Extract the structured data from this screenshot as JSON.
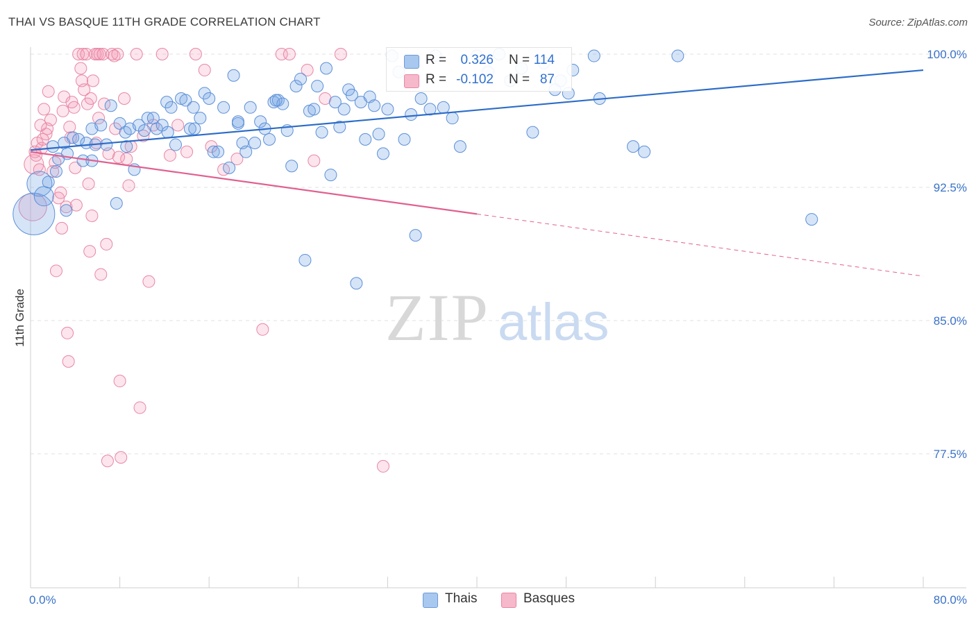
{
  "title": "THAI VS BASQUE 11TH GRADE CORRELATION CHART",
  "source": "Source: ZipAtlas.com",
  "watermark": {
    "zip": "ZIP",
    "atlas": "atlas"
  },
  "legend": {
    "rows": [
      {
        "r_label": "R =",
        "r_value": "0.326",
        "n_label": "N =",
        "n_value": "114",
        "color": "#a9c8ef",
        "border": "#6b9ad8"
      },
      {
        "r_label": "R =",
        "r_value": "-0.102",
        "n_label": "N =",
        "n_value": "87",
        "color": "#f6b8cb",
        "border": "#e886a5"
      }
    ]
  },
  "bottom_legend": [
    {
      "label": "Thais",
      "color": "#a9c8ef",
      "border": "#6b9ad8"
    },
    {
      "label": "Basques",
      "color": "#f6b8cb",
      "border": "#e886a5"
    }
  ],
  "colors": {
    "thai_fill": "rgba(120,165,228,0.30)",
    "thai_stroke": "#5a8fd8",
    "thai_line": "#2c6cc8",
    "basque_fill": "rgba(242,150,180,0.25)",
    "basque_stroke": "#e886a5",
    "basque_line": "#e06090",
    "tick_label": "#3a72c8",
    "grid": "#e2e2e2"
  },
  "chart_data": {
    "type": "scatter",
    "title": "THAI VS BASQUE 11TH GRADE CORRELATION CHART",
    "xlabel": "",
    "ylabel": "11th Grade",
    "xlim": [
      0,
      80
    ],
    "ylim": [
      71,
      101.5
    ],
    "x_tick_labels": [
      "0.0%",
      "80.0%"
    ],
    "y_ticks": [
      100,
      92.5,
      85,
      77.5
    ],
    "y_tick_labels": [
      "100.0%",
      "92.5%",
      "85.0%",
      "77.5%"
    ],
    "grid": true,
    "series": [
      {
        "name": "Thais",
        "trend": {
          "x0": 0,
          "y0": 94.6,
          "x1": 80,
          "y1": 99.1,
          "solid_until": 80
        },
        "points": [
          [
            0.3,
            91.0
          ],
          [
            0.8,
            92.7
          ],
          [
            1.2,
            92.0
          ],
          [
            1.6,
            92.8
          ],
          [
            2.0,
            94.8
          ],
          [
            2.3,
            93.4
          ],
          [
            2.5,
            94.1
          ],
          [
            3.0,
            95.0
          ],
          [
            3.3,
            94.4
          ],
          [
            3.8,
            95.3
          ],
          [
            4.3,
            95.2
          ],
          [
            4.7,
            94.0
          ],
          [
            5.0,
            95.0
          ],
          [
            5.5,
            95.8
          ],
          [
            5.8,
            94.9
          ],
          [
            6.3,
            96.0
          ],
          [
            6.8,
            94.9
          ],
          [
            7.2,
            97.1
          ],
          [
            7.7,
            91.6
          ],
          [
            8.0,
            96.1
          ],
          [
            8.5,
            95.6
          ],
          [
            8.9,
            95.8
          ],
          [
            9.3,
            93.5
          ],
          [
            9.7,
            96.0
          ],
          [
            10.2,
            95.7
          ],
          [
            10.5,
            96.4
          ],
          [
            11.0,
            96.4
          ],
          [
            11.3,
            95.8
          ],
          [
            11.8,
            96.0
          ],
          [
            12.2,
            97.3
          ],
          [
            12.6,
            97.0
          ],
          [
            13.0,
            94.9
          ],
          [
            13.5,
            97.5
          ],
          [
            13.9,
            97.4
          ],
          [
            14.3,
            95.8
          ],
          [
            14.7,
            95.8
          ],
          [
            15.2,
            96.4
          ],
          [
            15.6,
            97.8
          ],
          [
            16.0,
            97.5
          ],
          [
            16.4,
            94.5
          ],
          [
            16.8,
            94.5
          ],
          [
            17.3,
            97.0
          ],
          [
            17.8,
            93.6
          ],
          [
            18.2,
            98.8
          ],
          [
            18.6,
            96.1
          ],
          [
            19.0,
            95.0
          ],
          [
            19.3,
            94.5
          ],
          [
            19.7,
            97.0
          ],
          [
            20.1,
            95.0
          ],
          [
            20.6,
            96.2
          ],
          [
            21.0,
            95.8
          ],
          [
            21.4,
            95.2
          ],
          [
            21.8,
            97.3
          ],
          [
            22.2,
            97.4
          ],
          [
            22.6,
            97.2
          ],
          [
            23.0,
            95.7
          ],
          [
            23.4,
            93.7
          ],
          [
            23.8,
            98.2
          ],
          [
            24.2,
            98.6
          ],
          [
            24.6,
            88.4
          ],
          [
            25.0,
            96.8
          ],
          [
            25.4,
            96.9
          ],
          [
            25.7,
            98.2
          ],
          [
            26.1,
            95.6
          ],
          [
            26.5,
            99.2
          ],
          [
            26.9,
            93.2
          ],
          [
            27.3,
            97.3
          ],
          [
            27.7,
            95.9
          ],
          [
            28.1,
            96.9
          ],
          [
            28.5,
            98.0
          ],
          [
            28.8,
            97.7
          ],
          [
            29.2,
            87.1
          ],
          [
            29.6,
            97.3
          ],
          [
            30.0,
            95.2
          ],
          [
            30.4,
            97.6
          ],
          [
            30.8,
            97.1
          ],
          [
            31.2,
            95.5
          ],
          [
            31.6,
            94.4
          ],
          [
            32.0,
            96.9
          ],
          [
            32.4,
            99.9
          ],
          [
            33.0,
            99.0
          ],
          [
            33.5,
            95.2
          ],
          [
            34.1,
            96.6
          ],
          [
            34.5,
            89.8
          ],
          [
            35.0,
            97.5
          ],
          [
            35.8,
            96.9
          ],
          [
            36.3,
            99.9
          ],
          [
            37.0,
            97.0
          ],
          [
            37.8,
            96.4
          ],
          [
            38.5,
            94.8
          ],
          [
            40.0,
            99.9
          ],
          [
            41.0,
            99.0
          ],
          [
            42.0,
            100.0
          ],
          [
            43.0,
            98.5
          ],
          [
            44.0,
            99.2
          ],
          [
            45.0,
            95.6
          ],
          [
            46.0,
            99.5
          ],
          [
            47.0,
            98.0
          ],
          [
            47.5,
            98.5
          ],
          [
            48.2,
            97.8
          ],
          [
            48.6,
            99.1
          ],
          [
            50.5,
            99.9
          ],
          [
            51.0,
            97.5
          ],
          [
            54.0,
            94.8
          ],
          [
            55.0,
            94.5
          ],
          [
            58.0,
            99.9
          ],
          [
            70.0,
            90.7
          ],
          [
            3.2,
            91.2
          ],
          [
            5.5,
            94.0
          ],
          [
            8.6,
            94.8
          ],
          [
            12.3,
            95.6
          ],
          [
            14.6,
            97.0
          ],
          [
            18.6,
            96.2
          ],
          [
            22.0,
            97.4
          ]
        ],
        "sizes": {
          "0": 30,
          "1": 18,
          "2": 14
        }
      },
      {
        "name": "Basques",
        "trend": {
          "x0": 0,
          "y0": 94.5,
          "x1": 80,
          "y1": 87.5,
          "solid_until": 40
        },
        "points": [
          [
            0.2,
            91.4
          ],
          [
            0.3,
            93.8
          ],
          [
            0.4,
            94.5
          ],
          [
            0.6,
            95.0
          ],
          [
            0.8,
            93.5
          ],
          [
            1.0,
            94.7
          ],
          [
            1.2,
            96.9
          ],
          [
            1.4,
            95.5
          ],
          [
            1.6,
            97.9
          ],
          [
            1.8,
            96.3
          ],
          [
            2.0,
            93.4
          ],
          [
            2.2,
            93.9
          ],
          [
            2.3,
            87.8
          ],
          [
            2.5,
            91.9
          ],
          [
            2.7,
            92.2
          ],
          [
            2.8,
            90.2
          ],
          [
            3.0,
            97.6
          ],
          [
            3.2,
            91.4
          ],
          [
            3.3,
            84.3
          ],
          [
            3.4,
            82.7
          ],
          [
            3.5,
            95.9
          ],
          [
            3.7,
            97.3
          ],
          [
            3.9,
            97.0
          ],
          [
            4.1,
            91.5
          ],
          [
            4.3,
            100.0
          ],
          [
            4.5,
            99.2
          ],
          [
            4.6,
            98.5
          ],
          [
            4.7,
            100.0
          ],
          [
            4.8,
            98.0
          ],
          [
            5.0,
            100.0
          ],
          [
            5.1,
            97.2
          ],
          [
            5.2,
            92.7
          ],
          [
            5.3,
            88.9
          ],
          [
            5.4,
            97.5
          ],
          [
            5.5,
            90.9
          ],
          [
            5.6,
            98.5
          ],
          [
            5.8,
            100.0
          ],
          [
            5.9,
            95.0
          ],
          [
            6.0,
            100.0
          ],
          [
            6.1,
            96.4
          ],
          [
            6.2,
            100.0
          ],
          [
            6.3,
            87.6
          ],
          [
            6.5,
            100.0
          ],
          [
            6.6,
            97.2
          ],
          [
            6.8,
            89.3
          ],
          [
            6.9,
            77.1
          ],
          [
            7.0,
            94.4
          ],
          [
            7.3,
            100.0
          ],
          [
            7.5,
            99.9
          ],
          [
            7.8,
            100.0
          ],
          [
            7.9,
            94.2
          ],
          [
            8.0,
            81.6
          ],
          [
            8.1,
            77.3
          ],
          [
            8.4,
            97.5
          ],
          [
            8.6,
            94.1
          ],
          [
            9.0,
            94.8
          ],
          [
            9.5,
            100.0
          ],
          [
            9.8,
            80.1
          ],
          [
            10.1,
            95.4
          ],
          [
            10.6,
            87.2
          ],
          [
            11.0,
            96.0
          ],
          [
            11.8,
            100.0
          ],
          [
            12.5,
            94.3
          ],
          [
            13.2,
            96.0
          ],
          [
            14.0,
            94.5
          ],
          [
            14.8,
            100.0
          ],
          [
            15.6,
            99.1
          ],
          [
            16.2,
            94.8
          ],
          [
            17.3,
            93.5
          ],
          [
            18.5,
            94.1
          ],
          [
            20.8,
            84.5
          ],
          [
            22.5,
            100.0
          ],
          [
            23.2,
            100.0
          ],
          [
            24.8,
            99.1
          ],
          [
            25.4,
            94.0
          ],
          [
            26.4,
            97.5
          ],
          [
            27.8,
            100.0
          ],
          [
            31.6,
            76.8
          ],
          [
            1.5,
            95.8
          ],
          [
            2.9,
            96.8
          ],
          [
            3.6,
            95.3
          ],
          [
            4.0,
            93.6
          ],
          [
            1.1,
            95.2
          ],
          [
            0.9,
            96.0
          ],
          [
            0.5,
            94.3
          ],
          [
            7.6,
            95.8
          ],
          [
            8.8,
            92.6
          ]
        ],
        "sizes": {
          "0": 20,
          "1": 14
        }
      }
    ]
  }
}
